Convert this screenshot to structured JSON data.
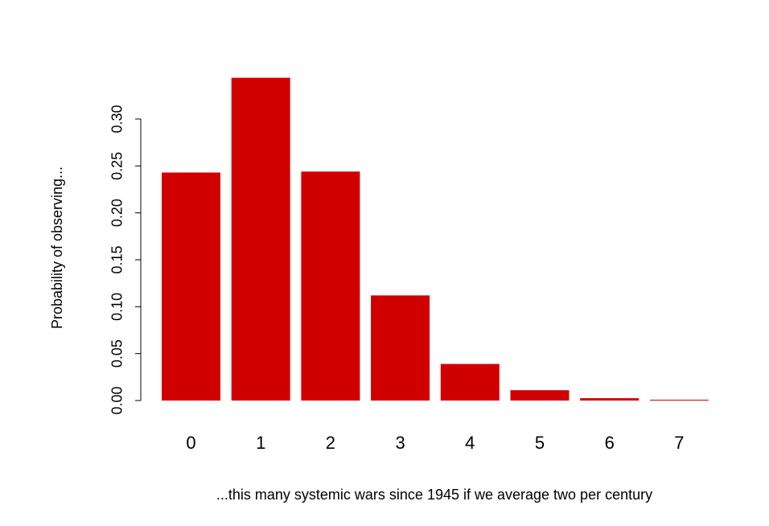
{
  "chart_data": {
    "type": "bar",
    "title": "",
    "xlabel": "...this many systemic wars since 1945 if we average two per century",
    "ylabel": "Probability of observing...",
    "categories": [
      "0",
      "1",
      "2",
      "3",
      "4",
      "5",
      "6",
      "7"
    ],
    "values": [
      0.243,
      0.344,
      0.244,
      0.112,
      0.039,
      0.011,
      0.0025,
      0.0006
    ],
    "ylim": [
      0,
      0.35
    ],
    "yticks": [
      0.0,
      0.05,
      0.1,
      0.15,
      0.2,
      0.25,
      0.3
    ],
    "ytick_labels": [
      "0.00",
      "0.05",
      "0.10",
      "0.15",
      "0.20",
      "0.25",
      "0.30"
    ],
    "grid": false,
    "bar_color": "#d10000"
  }
}
